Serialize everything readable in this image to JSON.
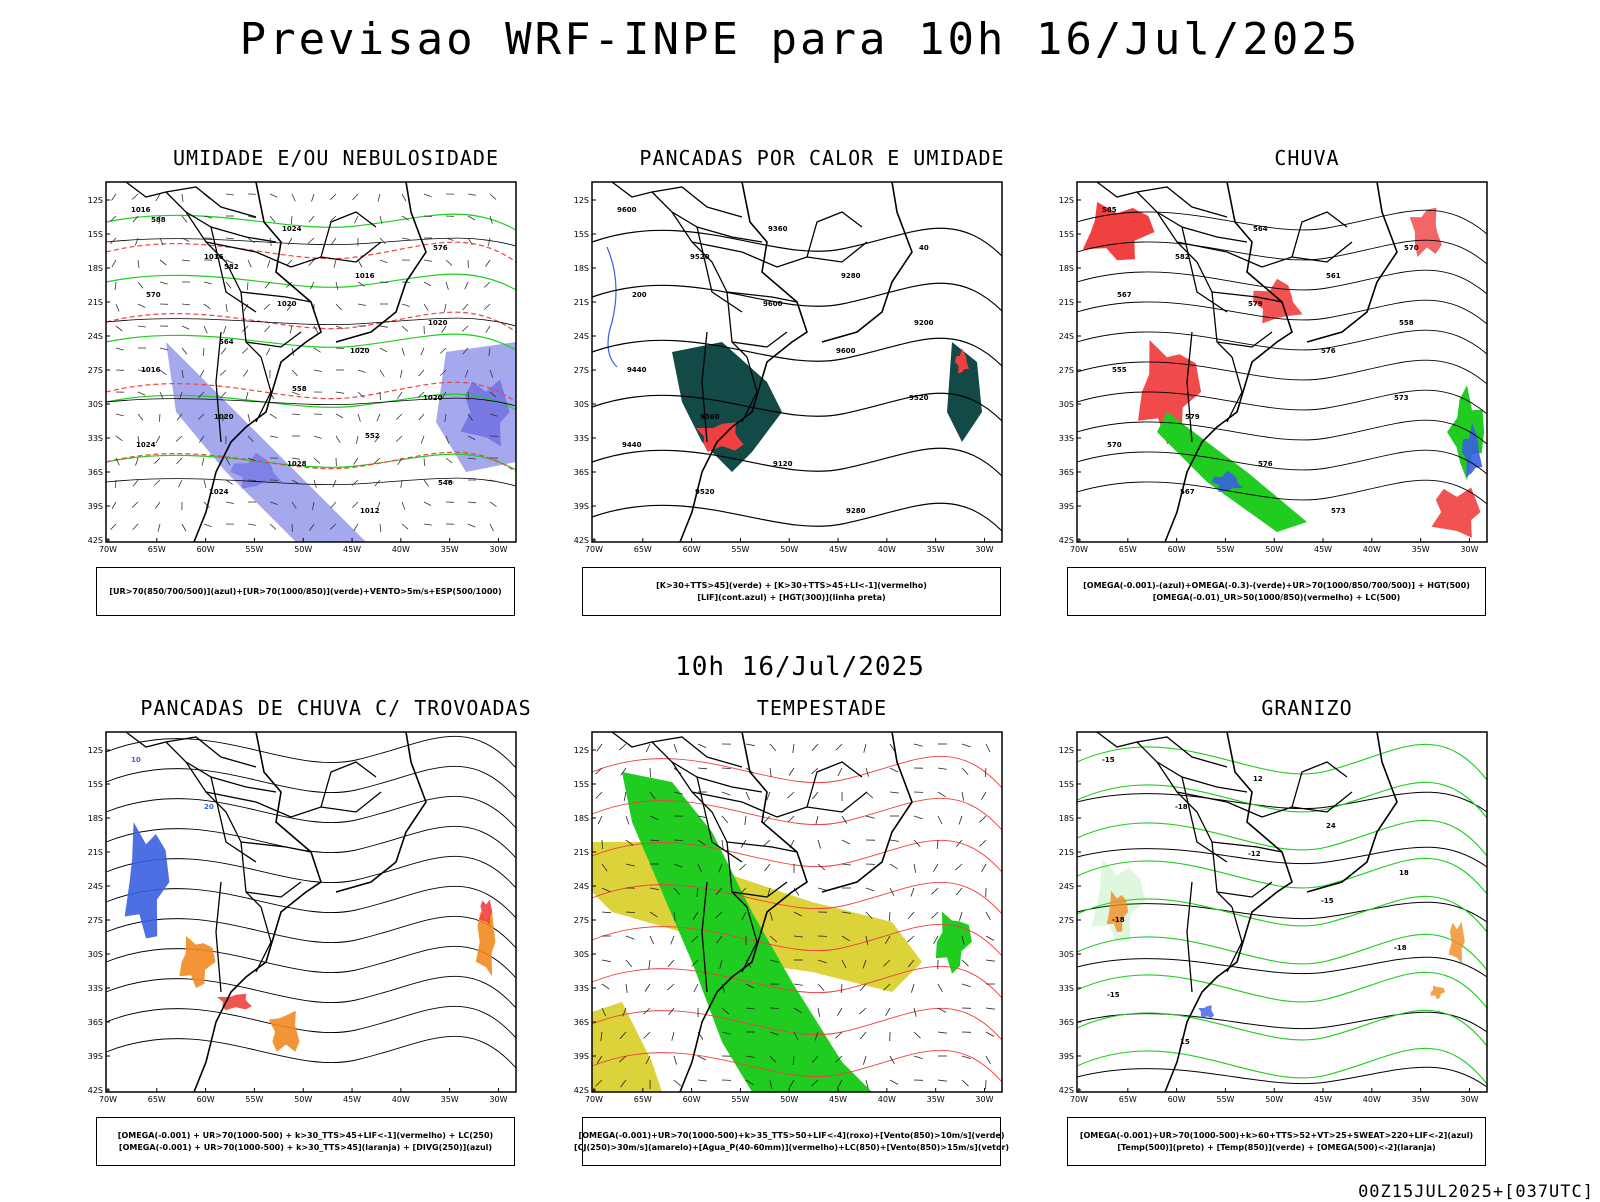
{
  "header": {
    "title": "Previsao WRF-INPE  para 10h 16/Jul/2025",
    "mid_title": "10h 16/Jul/2025",
    "footer": "00Z15JUL2025+[037UTC]"
  },
  "axes": {
    "lat_labels": [
      "12S",
      "15S",
      "18S",
      "21S",
      "24S",
      "27S",
      "30S",
      "33S",
      "36S",
      "39S",
      "42S"
    ],
    "lon_labels": [
      "70W",
      "65W",
      "60W",
      "55W",
      "50W",
      "45W",
      "40W",
      "35W",
      "30W"
    ]
  },
  "colors": {
    "blue": "#3a5fe0",
    "green": "#1fcc1f",
    "red": "#f04040",
    "orange": "#f08a20",
    "yellow": "#dcd23a",
    "dark_green": "#134a47",
    "lavender": "#a6a8ee",
    "purple": "#5a5ade",
    "dark_blue": "#3030c8"
  },
  "panels": [
    {
      "id": "p1",
      "title": "UMIDADE E/OU NEBULOSIDADE",
      "legend": [
        "[UR>70(850/700/500)](azul)+[UR>70(1000/850)](verde)+VENTO>5m/s+ESP(500/1000)"
      ],
      "labels": [
        "1016",
        "1016",
        "1020",
        "1020",
        "1020",
        "1024",
        "1024",
        "1024",
        "1016",
        "1020",
        "1016",
        "1020",
        "1028",
        "1012",
        "576",
        "570",
        "564",
        "558",
        "552",
        "546",
        "588",
        "582"
      ]
    },
    {
      "id": "p2",
      "title": "PANCADAS POR CALOR E UMIDADE",
      "legend": [
        "[K>30+TTS>45](verde) + [K>30+TTS>45+LI<-1](vermelho)",
        "[LIF](cont.azul) + [HGT(300)](linha preta)"
      ],
      "labels": [
        "9600",
        "9520",
        "9600",
        "9600",
        "9520",
        "9440",
        "9520",
        "9360",
        "9280",
        "9200",
        "9440",
        "9360",
        "9120",
        "9280",
        "40",
        "200"
      ]
    },
    {
      "id": "p3",
      "title": "CHUVA",
      "legend": [
        "[OMEGA(-0.001)-(azul)+OMEGA(-0.3)-(verde)+UR>70(1000/850/700/500)] + HGT(500)",
        "[OMEGA(-0.01)_UR>50(1000/850)(vermelho) + LC(500)"
      ],
      "labels": [
        "585",
        "582",
        "579",
        "576",
        "573",
        "570",
        "567",
        "564",
        "561",
        "558",
        "555",
        "579",
        "576",
        "573",
        "570",
        "567"
      ]
    },
    {
      "id": "p4",
      "title": "PANCADAS DE CHUVA C/ TROVOADAS",
      "legend": [
        "[OMEGA(-0.001) + UR>70(1000-500) + k>30_TTS>45+LIF<-1](vermelho) + LC(250)",
        "[OMEGA(-0.001) + UR>70(1000-500) + k>30_TTS>45](laranja) + [DIVG(250)](azul)"
      ],
      "labels": [
        "10",
        "20"
      ]
    },
    {
      "id": "p5",
      "title": "TEMPESTADE",
      "legend": [
        "[OMEGA(-0.001)+UR>70(1000-500)+k>35_TTS>50+LIF<-4](roxo)+[Vento(850)>10m/s](verde)",
        "[CJ(250)>30m/s](amarelo)+[Agua_P(40-60mm)](vermelho)+LC(850)+[Vento(850)>15m/s](vetor)"
      ],
      "labels": []
    },
    {
      "id": "p6",
      "title": "GRANIZO",
      "legend": [
        "[OMEGA(-0.001)+UR>70(1000-500)+k>60+TTS>52+VT>25+SWEAT>220+LIF<-2](azul)",
        "[Temp(500)](preto) + [Temp(850)](verde) + [OMEGA(500)<-2](laranja)"
      ],
      "labels": [
        "-15",
        "-18",
        "-12",
        "-15",
        "-18",
        "-15",
        "15",
        "12",
        "24",
        "18",
        "-18"
      ]
    }
  ]
}
